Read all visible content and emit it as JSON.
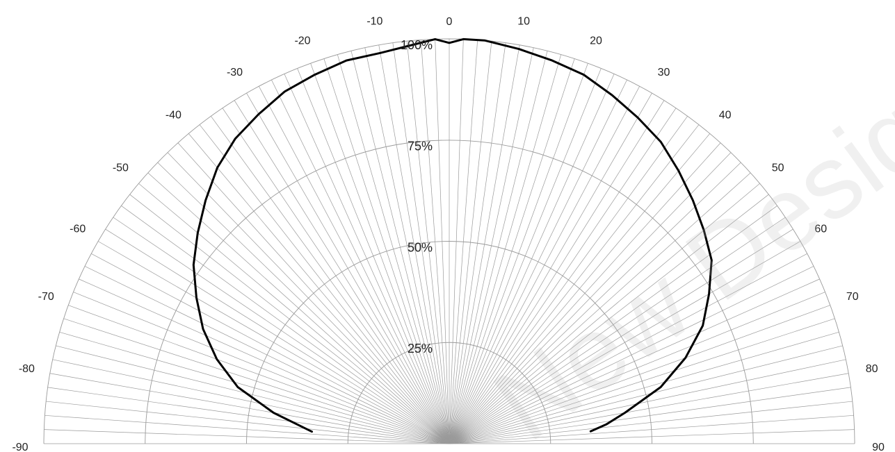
{
  "chart_data": {
    "type": "line",
    "title": "",
    "xlabel": "",
    "ylabel": "",
    "coordinate_system": "polar-half",
    "angle_range": [
      -90,
      90
    ],
    "radial_range": [
      0,
      100
    ],
    "angle_ticks": [
      -90,
      -80,
      -70,
      -60,
      -50,
      -40,
      -30,
      -20,
      -10,
      0,
      10,
      20,
      30,
      40,
      50,
      60,
      70,
      80,
      90
    ],
    "angle_tick_labels": [
      "-90",
      "-80",
      "-70",
      "-60",
      "-50",
      "-40",
      "-30",
      "-20",
      "-10",
      "0",
      "10",
      "20",
      "30",
      "40",
      "50",
      "60",
      "70",
      "80",
      "90"
    ],
    "radial_ticks": [
      25,
      50,
      75,
      100
    ],
    "radial_tick_labels": [
      "25%",
      "50%",
      "75%",
      "100%"
    ],
    "grid": true,
    "spoke_step_degrees": 2,
    "series": [
      {
        "color": "#000000",
        "points": [
          {
            "angle": -85,
            "r": 34
          },
          {
            "angle": -80,
            "r": 44
          },
          {
            "angle": -75,
            "r": 54
          },
          {
            "angle": -70,
            "r": 61
          },
          {
            "angle": -65,
            "r": 67
          },
          {
            "angle": -60,
            "r": 72
          },
          {
            "angle": -55,
            "r": 77
          },
          {
            "angle": -50,
            "r": 81
          },
          {
            "angle": -45,
            "r": 85
          },
          {
            "angle": -40,
            "r": 89
          },
          {
            "angle": -35,
            "r": 92
          },
          {
            "angle": -30,
            "r": 94
          },
          {
            "angle": -25,
            "r": 96
          },
          {
            "angle": -20,
            "r": 97
          },
          {
            "angle": -15,
            "r": 98
          },
          {
            "angle": -10,
            "r": 98
          },
          {
            "angle": -5,
            "r": 99
          },
          {
            "angle": -2,
            "r": 100
          },
          {
            "angle": 0,
            "r": 99
          },
          {
            "angle": 2,
            "r": 100
          },
          {
            "angle": 5,
            "r": 100
          },
          {
            "angle": 10,
            "r": 99
          },
          {
            "angle": 15,
            "r": 98
          },
          {
            "angle": 20,
            "r": 97
          },
          {
            "angle": 25,
            "r": 95
          },
          {
            "angle": 30,
            "r": 93
          },
          {
            "angle": 35,
            "r": 91
          },
          {
            "angle": 40,
            "r": 88
          },
          {
            "angle": 45,
            "r": 85
          },
          {
            "angle": 50,
            "r": 82
          },
          {
            "angle": 55,
            "r": 79
          },
          {
            "angle": 60,
            "r": 74
          },
          {
            "angle": 65,
            "r": 69
          },
          {
            "angle": 70,
            "r": 62
          },
          {
            "angle": 75,
            "r": 54
          },
          {
            "angle": 80,
            "r": 44
          },
          {
            "angle": 83,
            "r": 39
          },
          {
            "angle": 85,
            "r": 35
          }
        ]
      }
    ]
  },
  "watermark": {
    "text": "New Design"
  }
}
